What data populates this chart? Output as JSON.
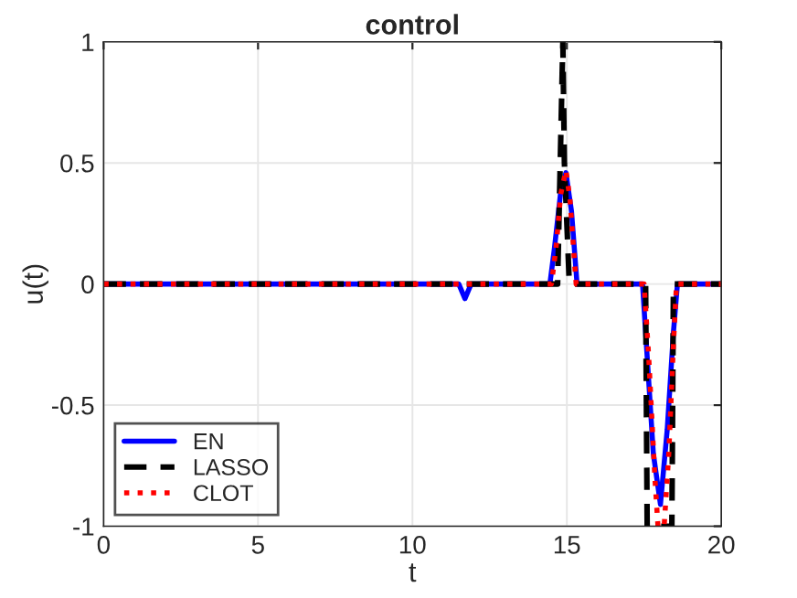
{
  "chart_data": {
    "type": "line",
    "title": "control",
    "xlabel": "t",
    "ylabel": "u(t)",
    "xlim": [
      0,
      20
    ],
    "ylim": [
      -1,
      1
    ],
    "xticks": [
      0,
      5,
      10,
      15,
      20
    ],
    "yticks": [
      -1,
      -0.5,
      0,
      0.5,
      1
    ],
    "grid": true,
    "legend": "bottom left",
    "series": [
      {
        "name": "EN",
        "color": "#0000ff",
        "line_style": "solid",
        "x": [
          0,
          11.5,
          11.7,
          11.9,
          14.45,
          14.6,
          14.8,
          14.97,
          15.15,
          15.33,
          17.45,
          17.6,
          17.8,
          18.03,
          18.25,
          18.45,
          18.58,
          20
        ],
        "values": [
          0,
          0,
          -0.06,
          0,
          0,
          0.15,
          0.38,
          0.46,
          0.3,
          0,
          0,
          -0.3,
          -0.7,
          -0.91,
          -0.6,
          -0.2,
          0,
          0
        ]
      },
      {
        "name": "LASSO",
        "color": "#000000",
        "line_style": "dashed",
        "x": [
          0,
          14.7,
          14.87,
          14.92,
          15.08,
          17.55,
          17.6,
          18.4,
          18.45,
          20
        ],
        "values": [
          0,
          0,
          1,
          0.5,
          0,
          0,
          -1,
          -1,
          0,
          0
        ]
      },
      {
        "name": "CLOT",
        "color": "#ff0000",
        "line_style": "dotted",
        "x": [
          0,
          14.5,
          14.65,
          14.8,
          14.97,
          15.1,
          15.3,
          17.5,
          17.65,
          17.85,
          17.95,
          18.15,
          18.3,
          18.45,
          18.55,
          20
        ],
        "values": [
          0,
          0,
          0.15,
          0.37,
          0.47,
          0.35,
          0,
          0,
          -0.3,
          -0.8,
          -1,
          -1,
          -0.7,
          -0.25,
          0,
          0
        ]
      }
    ]
  }
}
